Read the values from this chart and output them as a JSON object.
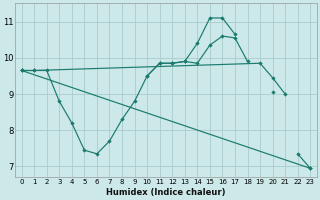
{
  "bg_color": "#cce8e8",
  "grid_color": "#aacccc",
  "line_color": "#1a7a6e",
  "xlabel": "Humidex (Indice chaleur)",
  "xlim": [
    -0.5,
    23.5
  ],
  "ylim": [
    6.7,
    11.5
  ],
  "xticks": [
    0,
    1,
    2,
    3,
    4,
    5,
    6,
    7,
    8,
    9,
    10,
    11,
    12,
    13,
    14,
    15,
    16,
    17,
    18,
    19,
    20,
    21,
    22,
    23
  ],
  "yticks": [
    7,
    8,
    9,
    10,
    11
  ],
  "line_A": {
    "x": [
      0,
      1,
      19,
      20,
      21
    ],
    "y": [
      9.65,
      9.65,
      9.85,
      9.45,
      9.0
    ]
  },
  "line_B": {
    "x": [
      0,
      1,
      2,
      3,
      4,
      5,
      6,
      7,
      8,
      9,
      10,
      11,
      12,
      13,
      14,
      15,
      16,
      17,
      18
    ],
    "y": [
      9.65,
      9.65,
      9.65,
      8.8,
      8.2,
      7.45,
      7.35,
      7.7,
      8.3,
      8.8,
      9.5,
      9.85,
      9.85,
      9.9,
      9.85,
      10.35,
      10.6,
      10.55,
      9.9
    ]
  },
  "line_C": {
    "x": [
      10,
      11,
      12,
      13,
      14,
      15,
      16,
      17,
      20,
      22,
      23
    ],
    "y": [
      9.5,
      9.85,
      9.85,
      9.9,
      10.4,
      11.1,
      11.1,
      10.65,
      9.05,
      7.35,
      6.95
    ]
  },
  "line_D": {
    "x": [
      0,
      23
    ],
    "y": [
      9.65,
      6.95
    ]
  }
}
